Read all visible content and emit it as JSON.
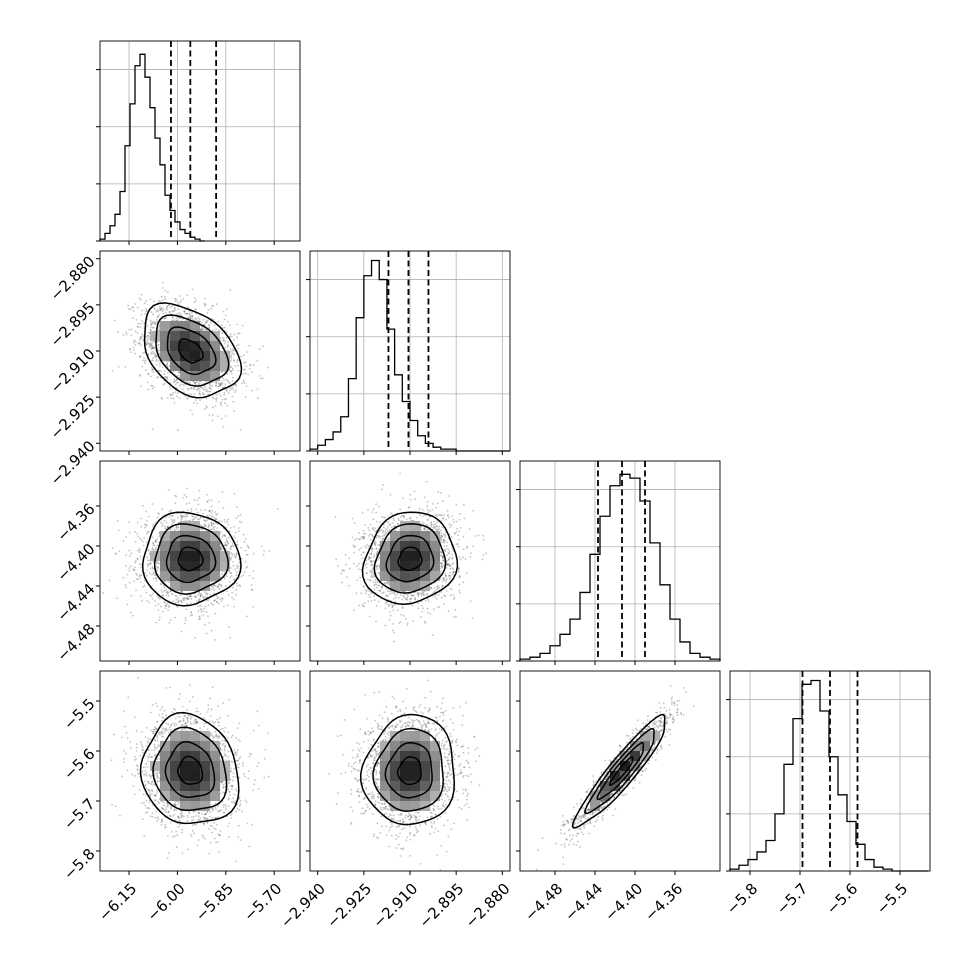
{
  "chart_data": {
    "type": "corner",
    "parameters": [
      {
        "range": [
          -6.24,
          -5.62
        ],
        "ticks": [
          -6.15,
          -6.0,
          -5.85,
          -5.7
        ],
        "tick_labels": [
          "−6.15",
          "−6.00",
          "−5.85",
          "−5.70"
        ],
        "quantiles": [
          -6.02,
          -5.96,
          -5.88
        ],
        "hist_edges_start": -6.24,
        "hist_bin_width": 0.0155,
        "hist_counts": [
          1,
          4,
          8,
          14,
          26,
          50,
          72,
          92,
          98,
          86,
          70,
          54,
          40,
          24,
          16,
          10,
          6,
          4,
          2,
          1,
          0
        ],
        "hist_ylim": [
          0,
          105
        ],
        "hist_grid": [
          0,
          30,
          60,
          90
        ]
      },
      {
        "range": [
          -2.9425,
          -2.8775
        ],
        "ticks": [
          -2.94,
          -2.925,
          -2.91,
          -2.895,
          -2.88
        ],
        "tick_labels": [
          "−2.940",
          "−2.925",
          "−2.910",
          "−2.895",
          "−2.880"
        ],
        "quantiles": [
          -2.917,
          -2.9105,
          -2.904
        ],
        "hist_edges_start": -2.9425,
        "hist_bin_width": 0.0025,
        "hist_counts": [
          1,
          3,
          6,
          10,
          18,
          38,
          70,
          92,
          100,
          90,
          64,
          40,
          26,
          16,
          8,
          4,
          2,
          1,
          1,
          0,
          0,
          0,
          0,
          0,
          0,
          0
        ],
        "hist_ylim": [
          0,
          105
        ],
        "hist_grid": [
          0,
          30,
          60,
          90
        ]
      },
      {
        "range": [
          -4.515,
          -4.315
        ],
        "ticks": [
          -4.48,
          -4.44,
          -4.4,
          -4.36
        ],
        "tick_labels": [
          "−4.48",
          "−4.44",
          "−4.40",
          "−4.36"
        ],
        "quantiles": [
          -4.437,
          -4.413,
          -4.39
        ],
        "hist_edges_start": -4.515,
        "hist_bin_width": 0.01,
        "hist_counts": [
          1,
          2,
          4,
          8,
          14,
          22,
          36,
          56,
          76,
          92,
          98,
          96,
          84,
          62,
          40,
          22,
          10,
          4,
          2,
          1
        ],
        "hist_ylim": [
          0,
          105
        ],
        "hist_grid": [
          0,
          30,
          60,
          90
        ]
      },
      {
        "range": [
          -5.84,
          -5.44
        ],
        "ticks": [
          -5.8,
          -5.7,
          -5.6,
          -5.5
        ],
        "tick_labels": [
          "−5.8",
          "−5.7",
          "−5.6",
          "−5.5"
        ],
        "quantiles": [
          -5.695,
          -5.64,
          -5.585
        ],
        "hist_edges_start": -5.84,
        "hist_bin_width": 0.018,
        "hist_counts": [
          1,
          3,
          6,
          10,
          16,
          30,
          56,
          80,
          98,
          100,
          84,
          60,
          40,
          26,
          14,
          6,
          2,
          1,
          0,
          0,
          0,
          0
        ],
        "hist_ylim": [
          0,
          105
        ],
        "hist_grid": [
          0,
          30,
          60,
          90
        ]
      }
    ],
    "pairs": [
      {
        "x": 0,
        "y": 1,
        "mean": [
          -5.96,
          -2.91
        ],
        "sd": [
          0.075,
          0.0075
        ],
        "corr": -0.35,
        "n": 2200
      },
      {
        "x": 0,
        "y": 2,
        "mean": [
          -5.96,
          -4.413
        ],
        "sd": [
          0.075,
          0.023
        ],
        "corr": 0.0,
        "n": 2200
      },
      {
        "x": 1,
        "y": 2,
        "mean": [
          -2.91,
          -4.413
        ],
        "sd": [
          0.0075,
          0.023
        ],
        "corr": 0.1,
        "n": 2200
      },
      {
        "x": 0,
        "y": 3,
        "mean": [
          -5.96,
          -5.64
        ],
        "sd": [
          0.075,
          0.055
        ],
        "corr": -0.1,
        "n": 2200
      },
      {
        "x": 1,
        "y": 3,
        "mean": [
          -2.91,
          -5.64
        ],
        "sd": [
          0.0075,
          0.055
        ],
        "corr": 0.05,
        "n": 2200
      },
      {
        "x": 2,
        "y": 3,
        "mean": [
          -4.413,
          -5.64
        ],
        "sd": [
          0.023,
          0.055
        ],
        "corr": 0.93,
        "n": 1800
      }
    ],
    "contour_levels_sigma": [
      0.5,
      1.0,
      1.5,
      2.0
    ],
    "grid": true,
    "legend": "none"
  }
}
